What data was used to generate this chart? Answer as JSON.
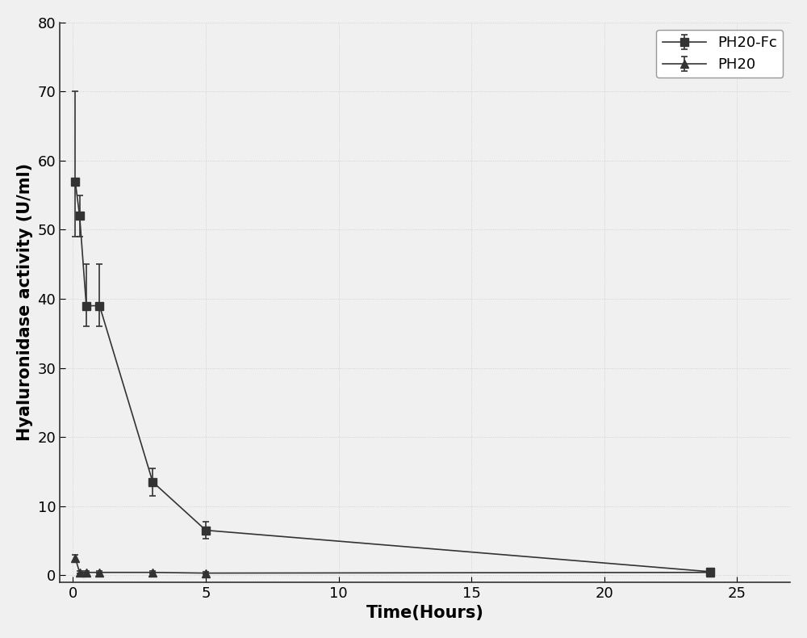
{
  "title": "",
  "xlabel": "Time(Hours)",
  "ylabel": "Hyaluronidase activity (U/ml)",
  "xlim": [
    -0.5,
    27
  ],
  "ylim": [
    -1,
    80
  ],
  "xticks": [
    0,
    5,
    10,
    15,
    20,
    25
  ],
  "yticks": [
    0,
    10,
    20,
    30,
    40,
    50,
    60,
    70,
    80
  ],
  "PH20_Fc": {
    "x": [
      0.083,
      0.25,
      0.5,
      1.0,
      3.0,
      5.0,
      24.0
    ],
    "y": [
      57.0,
      52.0,
      39.0,
      39.0,
      13.5,
      6.5,
      0.5
    ],
    "yerr_upper": [
      13.0,
      3.0,
      6.0,
      6.0,
      2.0,
      1.2,
      0.3
    ],
    "yerr_lower": [
      8.0,
      3.0,
      3.0,
      3.0,
      2.0,
      1.2,
      0.3
    ],
    "label": "PH20-Fc",
    "color": "#333333",
    "marker": "s",
    "markersize": 7,
    "linestyle": "-"
  },
  "PH20": {
    "x": [
      0.083,
      0.25,
      0.5,
      1.0,
      3.0,
      5.0,
      24.0
    ],
    "y": [
      2.5,
      0.4,
      0.4,
      0.4,
      0.4,
      0.3,
      0.4
    ],
    "yerr_upper": [
      0.5,
      0.15,
      0.15,
      0.15,
      0.15,
      0.15,
      0.15
    ],
    "yerr_lower": [
      0.5,
      0.15,
      0.15,
      0.15,
      0.15,
      0.15,
      0.15
    ],
    "label": "PH20",
    "color": "#333333",
    "marker": "^",
    "markersize": 7,
    "linestyle": "-"
  },
  "background_color": "#f0f0f0",
  "plot_bg_color": "#f0f0f0",
  "legend_loc": "upper right",
  "legend_fontsize": 13,
  "axis_label_fontsize": 15,
  "tick_fontsize": 13,
  "line_color": "#555555"
}
